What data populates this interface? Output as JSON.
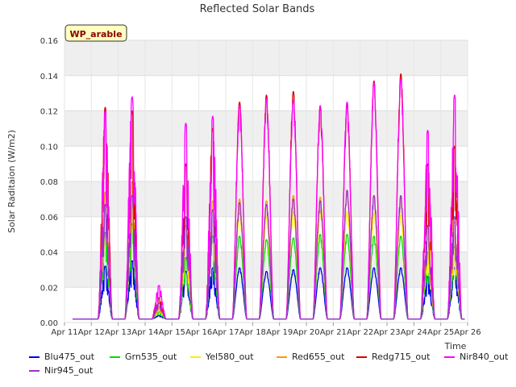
{
  "chart_data": {
    "type": "line",
    "title": "Reflected Solar Bands",
    "xlabel": "Time",
    "ylabel": "Solar Raditaion (W/m2)",
    "badge": "WP_arable",
    "ylim": [
      0,
      0.16
    ],
    "yticks": [
      "0.00",
      "0.02",
      "0.04",
      "0.06",
      "0.08",
      "0.10",
      "0.12",
      "0.14",
      "0.16"
    ],
    "xticks": [
      "Apr 11",
      "Apr 12",
      "Apr 13",
      "Apr 14",
      "Apr 15",
      "Apr 16",
      "Apr 17",
      "Apr 18",
      "Apr 19",
      "Apr 20",
      "Apr 21",
      "Apr 22",
      "Apr 23",
      "Apr 24",
      "Apr 25",
      "Apr 26"
    ],
    "x_start": "Apr 11",
    "x_end": "Apr 26",
    "data_start_day": 11.3,
    "data_end_day": 25.9,
    "day_peak_factor_note": "daily peak values per series",
    "days": [
      "Apr 12",
      "Apr 13",
      "Apr 14",
      "Apr 15",
      "Apr 16",
      "Apr 17",
      "Apr 18",
      "Apr 19",
      "Apr 20",
      "Apr 21",
      "Apr 22",
      "Apr 23",
      "Apr 24",
      "Apr 25"
    ],
    "series": [
      {
        "name": "Blu475_out",
        "color": "#0000ee",
        "peaks": [
          0.032,
          0.035,
          0.004,
          0.029,
          0.031,
          0.031,
          0.029,
          0.03,
          0.031,
          0.031,
          0.031,
          0.031,
          0.026,
          0.031
        ]
      },
      {
        "name": "Grn535_out",
        "color": "#00dd00",
        "peaks": [
          0.051,
          0.056,
          0.006,
          0.037,
          0.049,
          0.049,
          0.047,
          0.048,
          0.05,
          0.05,
          0.049,
          0.049,
          0.04,
          0.043
        ]
      },
      {
        "name": "Yel580_out",
        "color": "#ffee00",
        "peaks": [
          0.065,
          0.07,
          0.008,
          0.05,
          0.063,
          0.062,
          0.06,
          0.063,
          0.063,
          0.063,
          0.062,
          0.061,
          0.048,
          0.05
        ]
      },
      {
        "name": "Red655_out",
        "color": "#ff9900",
        "peaks": [
          0.074,
          0.08,
          0.009,
          0.055,
          0.069,
          0.07,
          0.069,
          0.072,
          0.071,
          0.073,
          0.072,
          0.071,
          0.054,
          0.057
        ]
      },
      {
        "name": "Redg715_out",
        "color": "#dd0000",
        "peaks": [
          0.122,
          0.12,
          0.014,
          0.09,
          0.11,
          0.125,
          0.129,
          0.131,
          0.122,
          0.124,
          0.137,
          0.141,
          0.09,
          0.1
        ]
      },
      {
        "name": "Nir840_out",
        "color": "#ff00ff",
        "peaks": [
          0.12,
          0.128,
          0.021,
          0.113,
          0.117,
          0.123,
          0.127,
          0.126,
          0.123,
          0.125,
          0.136,
          0.138,
          0.109,
          0.129
        ]
      },
      {
        "name": "Nir945_out",
        "color": "#9933cc",
        "peaks": [
          0.067,
          0.072,
          0.011,
          0.06,
          0.064,
          0.068,
          0.067,
          0.07,
          0.069,
          0.075,
          0.072,
          0.072,
          0.055,
          0.06
        ]
      }
    ],
    "grid": true,
    "legend_placement": "bottom"
  }
}
